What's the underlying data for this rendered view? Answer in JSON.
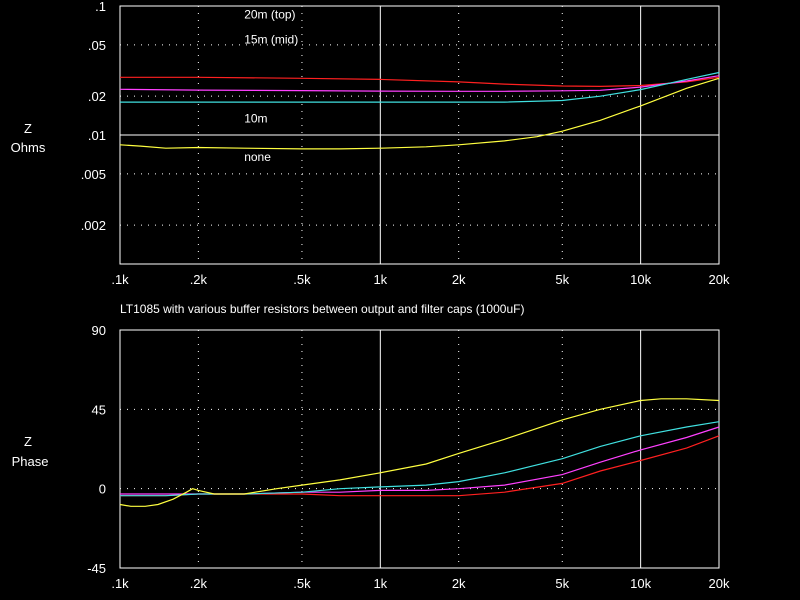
{
  "chart_data": [
    {
      "type": "line",
      "title": "",
      "xlabel": "",
      "ylabel": "Z Ohms",
      "ylabel_lines": [
        "Z",
        "Ohms"
      ],
      "x_scale": "log",
      "y_scale": "log",
      "xlim": [
        100,
        20000
      ],
      "ylim": [
        0.001,
        0.1
      ],
      "grid": true,
      "x_ticks": [
        {
          "value": 100,
          "label": ".1k"
        },
        {
          "value": 200,
          "label": ".2k"
        },
        {
          "value": 500,
          "label": ".5k"
        },
        {
          "value": 1000,
          "label": "1k"
        },
        {
          "value": 2000,
          "label": "2k"
        },
        {
          "value": 5000,
          "label": "5k"
        },
        {
          "value": 10000,
          "label": "10k"
        },
        {
          "value": 20000,
          "label": "20k"
        }
      ],
      "y_ticks": [
        {
          "value": 0.1,
          "label": ".1"
        },
        {
          "value": 0.05,
          "label": ".05"
        },
        {
          "value": 0.02,
          "label": ".02"
        },
        {
          "value": 0.01,
          "label": ".01"
        },
        {
          "value": 0.005,
          "label": ".005"
        },
        {
          "value": 0.002,
          "label": ".002"
        }
      ],
      "annotations": [
        {
          "text": "20m (top)",
          "x": 300,
          "y": 0.08
        },
        {
          "text": "15m (mid)",
          "x": 300,
          "y": 0.051
        },
        {
          "text": "10m",
          "x": 300,
          "y": 0.0125
        },
        {
          "text": "none",
          "x": 300,
          "y": 0.0063
        }
      ],
      "series": [
        {
          "color": "#ff2020",
          "x": [
            100,
            200,
            500,
            1000,
            2000,
            3000,
            5000,
            7000,
            10000,
            15000,
            20000
          ],
          "y": [
            0.028,
            0.028,
            0.0275,
            0.027,
            0.0258,
            0.0248,
            0.024,
            0.0238,
            0.0242,
            0.0258,
            0.028
          ]
        },
        {
          "color": "#ff40ff",
          "x": [
            100,
            200,
            500,
            1000,
            2000,
            3000,
            5000,
            7000,
            10000,
            15000,
            20000
          ],
          "y": [
            0.0226,
            0.0223,
            0.0221,
            0.0219,
            0.0218,
            0.0218,
            0.022,
            0.0222,
            0.0235,
            0.0262,
            0.0288
          ]
        },
        {
          "color": "#40e0e0",
          "x": [
            100,
            200,
            500,
            1000,
            2000,
            3000,
            5000,
            7000,
            10000,
            15000,
            20000
          ],
          "y": [
            0.018,
            0.018,
            0.018,
            0.018,
            0.018,
            0.018,
            0.0185,
            0.02,
            0.0225,
            0.027,
            0.0305
          ]
        },
        {
          "color": "#ffff40",
          "x": [
            100,
            120,
            150,
            200,
            300,
            500,
            700,
            1000,
            1500,
            2000,
            3000,
            4000,
            5000,
            7000,
            10000,
            15000,
            20000
          ],
          "y": [
            0.0084,
            0.0082,
            0.0079,
            0.008,
            0.0079,
            0.0078,
            0.0078,
            0.0079,
            0.0081,
            0.0084,
            0.009,
            0.0097,
            0.0107,
            0.013,
            0.0168,
            0.023,
            0.0275
          ]
        }
      ]
    },
    {
      "type": "line",
      "title": "LT1085 with various buffer resistors between output and filter caps  (1000uF)",
      "xlabel": "",
      "ylabel": "Z Phase",
      "ylabel_lines": [
        "Z",
        "Phase"
      ],
      "x_scale": "log",
      "y_scale": "linear",
      "xlim": [
        100,
        20000
      ],
      "ylim": [
        -45,
        90
      ],
      "grid": true,
      "x_ticks": [
        {
          "value": 100,
          "label": ".1k"
        },
        {
          "value": 200,
          "label": ".2k"
        },
        {
          "value": 500,
          "label": ".5k"
        },
        {
          "value": 1000,
          "label": "1k"
        },
        {
          "value": 2000,
          "label": "2k"
        },
        {
          "value": 5000,
          "label": "5k"
        },
        {
          "value": 10000,
          "label": "10k"
        },
        {
          "value": 20000,
          "label": "20k"
        }
      ],
      "y_ticks": [
        {
          "value": 90,
          "label": "90"
        },
        {
          "value": 45,
          "label": "45"
        },
        {
          "value": 0,
          "label": "0"
        },
        {
          "value": -45,
          "label": "-45"
        }
      ],
      "series": [
        {
          "color": "#ff2020",
          "x": [
            100,
            150,
            200,
            300,
            500,
            700,
            1000,
            1500,
            2000,
            3000,
            5000,
            7000,
            10000,
            15000,
            20000
          ],
          "y": [
            -4,
            -4,
            -3,
            -3,
            -3,
            -4,
            -4,
            -4,
            -4,
            -2,
            3,
            10,
            16,
            23,
            30
          ]
        },
        {
          "color": "#ff40ff",
          "x": [
            100,
            150,
            200,
            300,
            500,
            700,
            1000,
            1500,
            2000,
            3000,
            5000,
            7000,
            10000,
            15000,
            20000
          ],
          "y": [
            -3,
            -3,
            -3,
            -3,
            -2,
            -2,
            -1,
            -1,
            0,
            2,
            8,
            15,
            22,
            29,
            35
          ]
        },
        {
          "color": "#40e0e0",
          "x": [
            100,
            150,
            200,
            300,
            500,
            700,
            1000,
            1500,
            2000,
            3000,
            5000,
            7000,
            10000,
            15000,
            20000
          ],
          "y": [
            -4,
            -4,
            -3,
            -3,
            -2,
            0,
            1,
            2,
            4,
            9,
            17,
            24,
            30,
            35,
            38
          ]
        },
        {
          "color": "#ffff40",
          "x": [
            100,
            110,
            125,
            140,
            160,
            180,
            190,
            200,
            230,
            300,
            400,
            500,
            700,
            1000,
            1500,
            2000,
            3000,
            5000,
            7000,
            10000,
            12000,
            15000,
            20000
          ],
          "y": [
            -9,
            -10,
            -10,
            -9,
            -6,
            -2,
            0,
            -1,
            -3,
            -3,
            0,
            2,
            5,
            9,
            14,
            20,
            28,
            39,
            45,
            50,
            51,
            51,
            50
          ]
        }
      ]
    }
  ]
}
